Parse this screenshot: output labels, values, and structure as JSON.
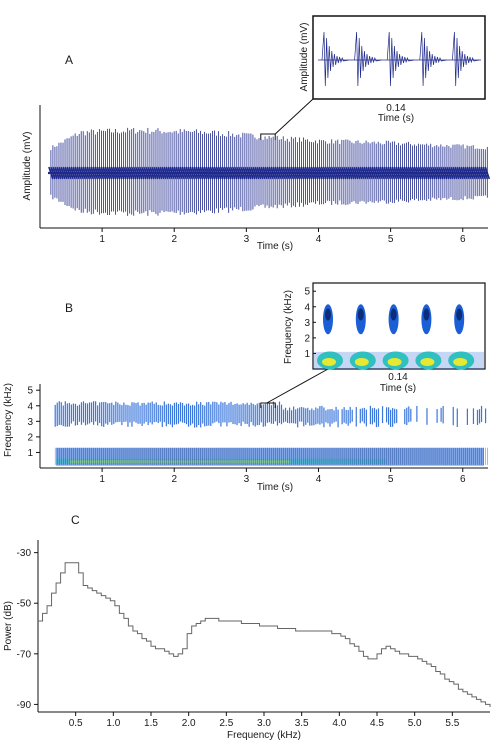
{
  "panels": {
    "A": {
      "letter": "A"
    },
    "B": {
      "letter": "B"
    },
    "C": {
      "letter": "C"
    }
  },
  "colors": {
    "waveform": "#1f2a8c",
    "axis": "#111111",
    "power_line": "#666666",
    "spectro_high": "#1a5fd6",
    "spectro_low_core": "#e8e830",
    "spectro_low_mid": "#30c0c0"
  },
  "chart_data": [
    {
      "id": "A-main",
      "type": "line",
      "title": "",
      "xlabel": "Time (s)",
      "ylabel": "Amplitude (mV)",
      "xlim": [
        0.25,
        6.35
      ],
      "x_ticks": [
        1,
        2,
        3,
        4,
        5,
        6
      ],
      "pulse_rate_per_s": 35.7,
      "envelope": {
        "x": [
          0.25,
          0.7,
          1.5,
          2.5,
          3.2,
          4.0,
          5.0,
          6.35
        ],
        "amplitude_rel": [
          0.55,
          0.95,
          1.0,
          0.95,
          0.85,
          0.75,
          0.7,
          0.6
        ]
      },
      "zoom_marker": {
        "start_s": 3.2,
        "end_s": 3.4
      }
    },
    {
      "id": "A-inset",
      "type": "line",
      "title": "",
      "xlabel": "Time (s)",
      "ylabel": "Amplitude (mV)",
      "x_span_label": "0.14",
      "pulses": 5,
      "duration_s": 0.14
    },
    {
      "id": "B-main",
      "type": "heatmap",
      "title": "",
      "xlabel": "Time (s)",
      "ylabel": "Frequency (kHz)",
      "xlim": [
        0.25,
        6.35
      ],
      "ylim": [
        0,
        5.4
      ],
      "x_ticks": [
        1,
        2,
        3,
        4,
        5,
        6
      ],
      "y_ticks": [
        1,
        2,
        3,
        4,
        5
      ],
      "bands_khz": {
        "low": [
          0.2,
          1.3
        ],
        "high": [
          2.0,
          4.3
        ]
      },
      "zoom_marker": {
        "start_s": 3.2,
        "end_s": 3.4
      }
    },
    {
      "id": "B-inset",
      "type": "heatmap",
      "title": "",
      "xlabel": "Time (s)",
      "ylabel": "Frequency (kHz)",
      "x_span_label": "0.14",
      "y_ticks": [
        1,
        2,
        3,
        4,
        5
      ],
      "pulses": 5
    },
    {
      "id": "C",
      "type": "line",
      "title": "",
      "xlabel": "Frequency (kHz)",
      "ylabel": "Power (dB)",
      "xlim": [
        0.0,
        6.0
      ],
      "ylim": [
        -93,
        -25
      ],
      "x_ticks": [
        "0.5",
        "1.0",
        "1.5",
        "2.0",
        "2.5",
        "3.0",
        "3.5",
        "4.0",
        "4.5",
        "5.0",
        "5.5"
      ],
      "y_ticks": [
        "-30",
        "-50",
        "-70",
        "-90"
      ],
      "x": [
        0.0,
        0.1,
        0.2,
        0.3,
        0.35,
        0.5,
        0.6,
        0.8,
        1.0,
        1.2,
        1.4,
        1.5,
        1.6,
        1.7,
        1.8,
        1.9,
        2.0,
        2.2,
        2.5,
        2.8,
        3.0,
        3.3,
        3.5,
        3.8,
        4.0,
        4.2,
        4.4,
        4.5,
        4.6,
        4.8,
        5.0,
        5.2,
        5.4,
        5.6,
        5.8,
        6.0
      ],
      "y": [
        -57,
        -52,
        -45,
        -38,
        -34,
        -34,
        -43,
        -46,
        -50,
        -59,
        -64,
        -67,
        -68,
        -69,
        -71,
        -70,
        -60,
        -56,
        -57,
        -58,
        -59,
        -60,
        -61,
        -61,
        -62,
        -67,
        -73,
        -70,
        -67,
        -70,
        -71,
        -75,
        -80,
        -84,
        -88,
        -91
      ]
    }
  ]
}
